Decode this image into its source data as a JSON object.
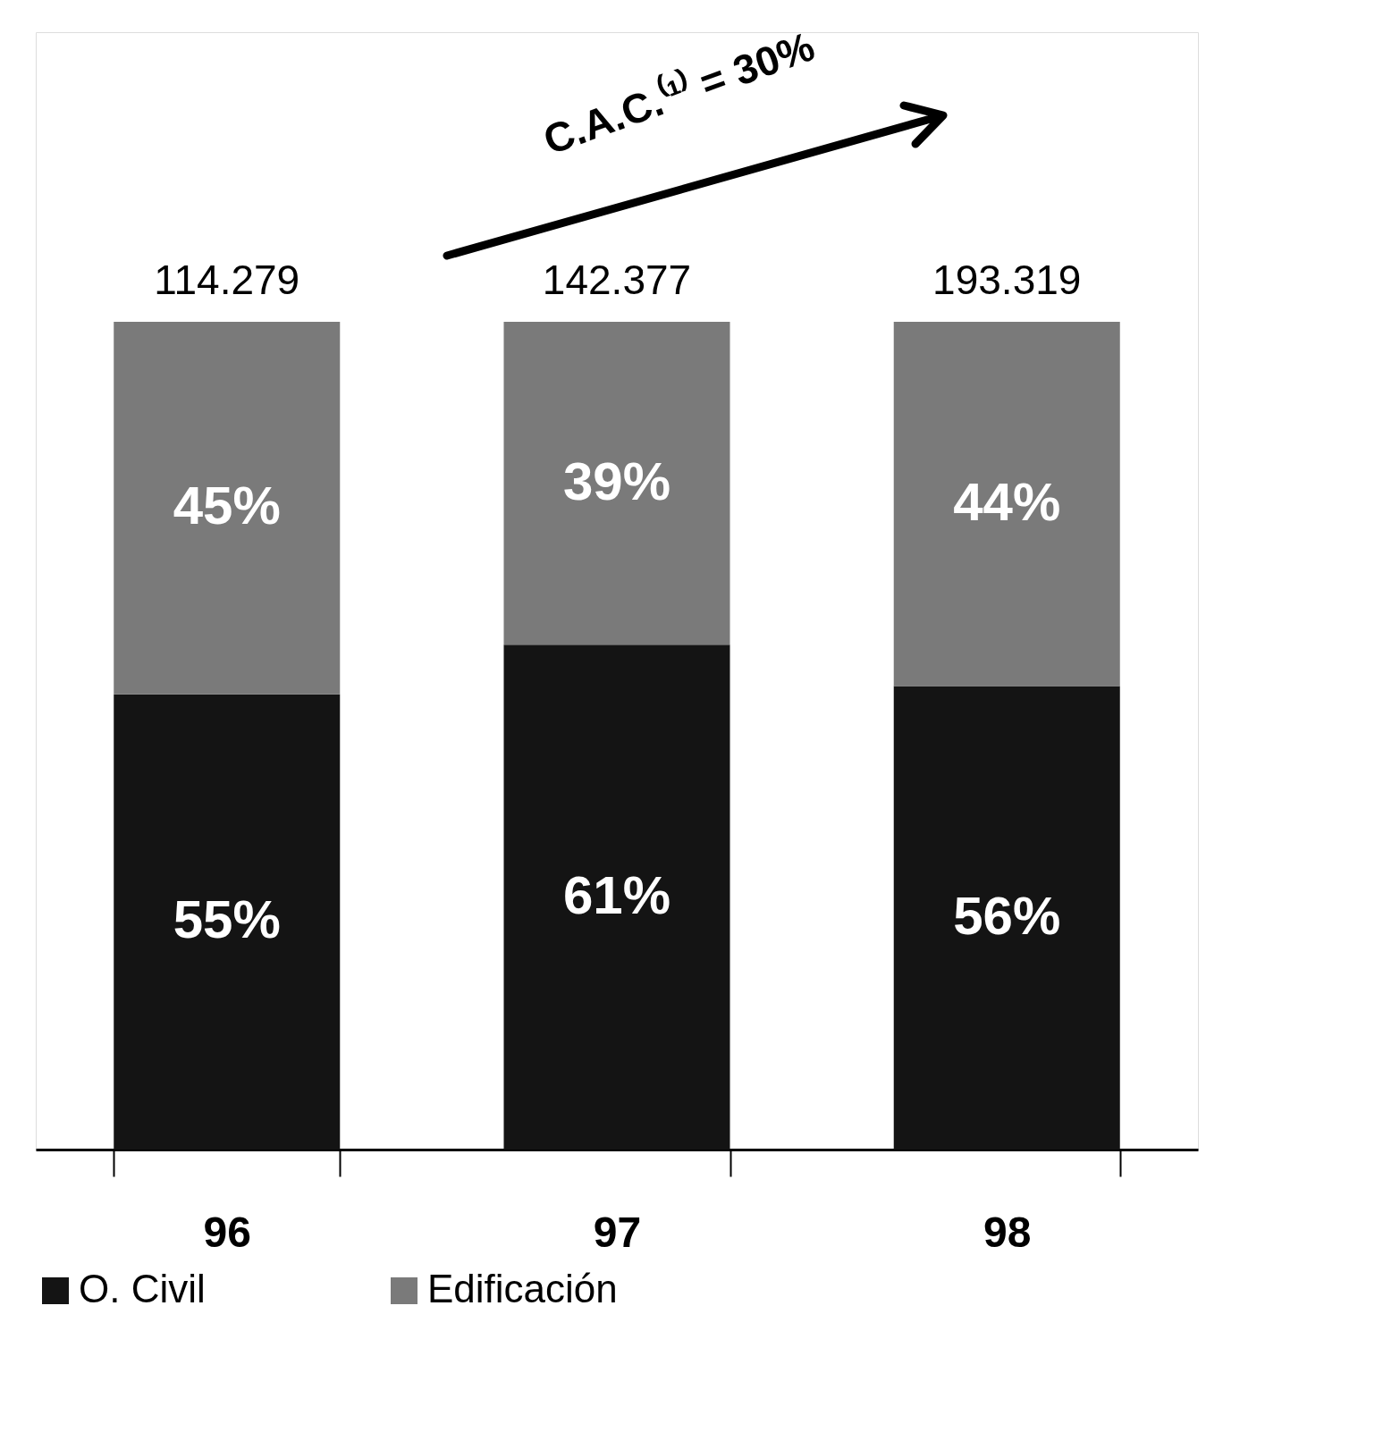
{
  "chart_data": {
    "type": "bar",
    "stacked": true,
    "categories": [
      "96",
      "97",
      "98"
    ],
    "series": [
      {
        "name": "O. Civil",
        "color": "#141414",
        "values": [
          55,
          61,
          56
        ],
        "value_labels": [
          "55%",
          "61%",
          "56%"
        ]
      },
      {
        "name": "Edificación",
        "color": "#7a7a7a",
        "values": [
          45,
          39,
          44
        ],
        "value_labels": [
          "45%",
          "39%",
          "44%"
        ]
      }
    ],
    "tick_labels": "x",
    "grid": false,
    "legend": "bottom",
    "annotations": [
      "C.A.C.⁽¹⁾ = 30%",
      "114.279",
      "142.377",
      "193.319"
    ]
  }
}
